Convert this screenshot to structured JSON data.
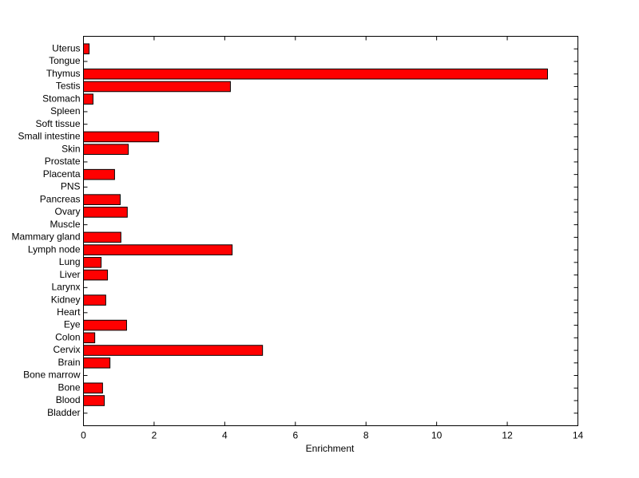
{
  "chart_data": {
    "type": "barh",
    "xlabel": "Enrichment",
    "categories": [
      "Uterus",
      "Tongue",
      "Thymus",
      "Testis",
      "Stomach",
      "Spleen",
      "Soft tissue",
      "Small intestine",
      "Skin",
      "Prostate",
      "Placenta",
      "PNS",
      "Pancreas",
      "Ovary",
      "Muscle",
      "Mammary gland",
      "Lymph node",
      "Lung",
      "Liver",
      "Larynx",
      "Kidney",
      "Heart",
      "Eye",
      "Colon",
      "Cervix",
      "Brain",
      "Bone marrow",
      "Bone",
      "Blood",
      "Bladder"
    ],
    "values": [
      0.16,
      0,
      13.14,
      4.16,
      0.27,
      0,
      0,
      2.13,
      1.27,
      0,
      0.88,
      0,
      1.04,
      1.24,
      0,
      1.06,
      4.21,
      0.5,
      0.68,
      0,
      0.63,
      0,
      1.22,
      0.32,
      5.07,
      0.75,
      0,
      0.54,
      0.59,
      0
    ],
    "color": "#ff0000",
    "xlim": [
      0,
      14
    ],
    "xticks": [
      0,
      2,
      4,
      6,
      8,
      10,
      12,
      14
    ]
  }
}
